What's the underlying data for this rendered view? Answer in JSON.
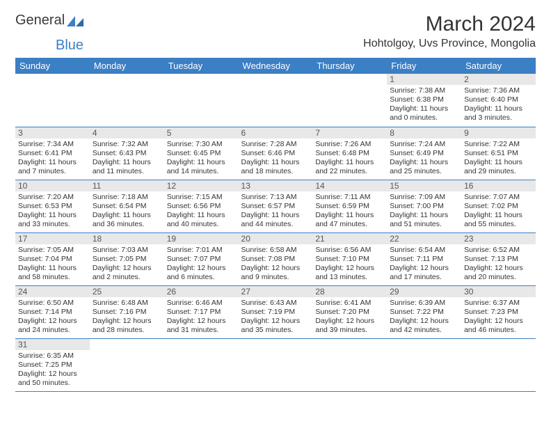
{
  "logo": {
    "text1": "General",
    "text2": "Blue"
  },
  "title": "March 2024",
  "location": "Hohtolgoy, Uvs Province, Mongolia",
  "header_bg": "#3b7fc4",
  "header_fg": "#ffffff",
  "daynum_bg": "#e8e8e8",
  "row_border": "#3b7fc4",
  "columns": [
    "Sunday",
    "Monday",
    "Tuesday",
    "Wednesday",
    "Thursday",
    "Friday",
    "Saturday"
  ],
  "weeks": [
    [
      {
        "n": "",
        "sr": "",
        "ss": "",
        "dl": ""
      },
      {
        "n": "",
        "sr": "",
        "ss": "",
        "dl": ""
      },
      {
        "n": "",
        "sr": "",
        "ss": "",
        "dl": ""
      },
      {
        "n": "",
        "sr": "",
        "ss": "",
        "dl": ""
      },
      {
        "n": "",
        "sr": "",
        "ss": "",
        "dl": ""
      },
      {
        "n": "1",
        "sr": "Sunrise: 7:38 AM",
        "ss": "Sunset: 6:38 PM",
        "dl": "Daylight: 11 hours and 0 minutes."
      },
      {
        "n": "2",
        "sr": "Sunrise: 7:36 AM",
        "ss": "Sunset: 6:40 PM",
        "dl": "Daylight: 11 hours and 3 minutes."
      }
    ],
    [
      {
        "n": "3",
        "sr": "Sunrise: 7:34 AM",
        "ss": "Sunset: 6:41 PM",
        "dl": "Daylight: 11 hours and 7 minutes."
      },
      {
        "n": "4",
        "sr": "Sunrise: 7:32 AM",
        "ss": "Sunset: 6:43 PM",
        "dl": "Daylight: 11 hours and 11 minutes."
      },
      {
        "n": "5",
        "sr": "Sunrise: 7:30 AM",
        "ss": "Sunset: 6:45 PM",
        "dl": "Daylight: 11 hours and 14 minutes."
      },
      {
        "n": "6",
        "sr": "Sunrise: 7:28 AM",
        "ss": "Sunset: 6:46 PM",
        "dl": "Daylight: 11 hours and 18 minutes."
      },
      {
        "n": "7",
        "sr": "Sunrise: 7:26 AM",
        "ss": "Sunset: 6:48 PM",
        "dl": "Daylight: 11 hours and 22 minutes."
      },
      {
        "n": "8",
        "sr": "Sunrise: 7:24 AM",
        "ss": "Sunset: 6:49 PM",
        "dl": "Daylight: 11 hours and 25 minutes."
      },
      {
        "n": "9",
        "sr": "Sunrise: 7:22 AM",
        "ss": "Sunset: 6:51 PM",
        "dl": "Daylight: 11 hours and 29 minutes."
      }
    ],
    [
      {
        "n": "10",
        "sr": "Sunrise: 7:20 AM",
        "ss": "Sunset: 6:53 PM",
        "dl": "Daylight: 11 hours and 33 minutes."
      },
      {
        "n": "11",
        "sr": "Sunrise: 7:18 AM",
        "ss": "Sunset: 6:54 PM",
        "dl": "Daylight: 11 hours and 36 minutes."
      },
      {
        "n": "12",
        "sr": "Sunrise: 7:15 AM",
        "ss": "Sunset: 6:56 PM",
        "dl": "Daylight: 11 hours and 40 minutes."
      },
      {
        "n": "13",
        "sr": "Sunrise: 7:13 AM",
        "ss": "Sunset: 6:57 PM",
        "dl": "Daylight: 11 hours and 44 minutes."
      },
      {
        "n": "14",
        "sr": "Sunrise: 7:11 AM",
        "ss": "Sunset: 6:59 PM",
        "dl": "Daylight: 11 hours and 47 minutes."
      },
      {
        "n": "15",
        "sr": "Sunrise: 7:09 AM",
        "ss": "Sunset: 7:00 PM",
        "dl": "Daylight: 11 hours and 51 minutes."
      },
      {
        "n": "16",
        "sr": "Sunrise: 7:07 AM",
        "ss": "Sunset: 7:02 PM",
        "dl": "Daylight: 11 hours and 55 minutes."
      }
    ],
    [
      {
        "n": "17",
        "sr": "Sunrise: 7:05 AM",
        "ss": "Sunset: 7:04 PM",
        "dl": "Daylight: 11 hours and 58 minutes."
      },
      {
        "n": "18",
        "sr": "Sunrise: 7:03 AM",
        "ss": "Sunset: 7:05 PM",
        "dl": "Daylight: 12 hours and 2 minutes."
      },
      {
        "n": "19",
        "sr": "Sunrise: 7:01 AM",
        "ss": "Sunset: 7:07 PM",
        "dl": "Daylight: 12 hours and 6 minutes."
      },
      {
        "n": "20",
        "sr": "Sunrise: 6:58 AM",
        "ss": "Sunset: 7:08 PM",
        "dl": "Daylight: 12 hours and 9 minutes."
      },
      {
        "n": "21",
        "sr": "Sunrise: 6:56 AM",
        "ss": "Sunset: 7:10 PM",
        "dl": "Daylight: 12 hours and 13 minutes."
      },
      {
        "n": "22",
        "sr": "Sunrise: 6:54 AM",
        "ss": "Sunset: 7:11 PM",
        "dl": "Daylight: 12 hours and 17 minutes."
      },
      {
        "n": "23",
        "sr": "Sunrise: 6:52 AM",
        "ss": "Sunset: 7:13 PM",
        "dl": "Daylight: 12 hours and 20 minutes."
      }
    ],
    [
      {
        "n": "24",
        "sr": "Sunrise: 6:50 AM",
        "ss": "Sunset: 7:14 PM",
        "dl": "Daylight: 12 hours and 24 minutes."
      },
      {
        "n": "25",
        "sr": "Sunrise: 6:48 AM",
        "ss": "Sunset: 7:16 PM",
        "dl": "Daylight: 12 hours and 28 minutes."
      },
      {
        "n": "26",
        "sr": "Sunrise: 6:46 AM",
        "ss": "Sunset: 7:17 PM",
        "dl": "Daylight: 12 hours and 31 minutes."
      },
      {
        "n": "27",
        "sr": "Sunrise: 6:43 AM",
        "ss": "Sunset: 7:19 PM",
        "dl": "Daylight: 12 hours and 35 minutes."
      },
      {
        "n": "28",
        "sr": "Sunrise: 6:41 AM",
        "ss": "Sunset: 7:20 PM",
        "dl": "Daylight: 12 hours and 39 minutes."
      },
      {
        "n": "29",
        "sr": "Sunrise: 6:39 AM",
        "ss": "Sunset: 7:22 PM",
        "dl": "Daylight: 12 hours and 42 minutes."
      },
      {
        "n": "30",
        "sr": "Sunrise: 6:37 AM",
        "ss": "Sunset: 7:23 PM",
        "dl": "Daylight: 12 hours and 46 minutes."
      }
    ],
    [
      {
        "n": "31",
        "sr": "Sunrise: 6:35 AM",
        "ss": "Sunset: 7:25 PM",
        "dl": "Daylight: 12 hours and 50 minutes."
      },
      {
        "n": "",
        "sr": "",
        "ss": "",
        "dl": ""
      },
      {
        "n": "",
        "sr": "",
        "ss": "",
        "dl": ""
      },
      {
        "n": "",
        "sr": "",
        "ss": "",
        "dl": ""
      },
      {
        "n": "",
        "sr": "",
        "ss": "",
        "dl": ""
      },
      {
        "n": "",
        "sr": "",
        "ss": "",
        "dl": ""
      },
      {
        "n": "",
        "sr": "",
        "ss": "",
        "dl": ""
      }
    ]
  ]
}
